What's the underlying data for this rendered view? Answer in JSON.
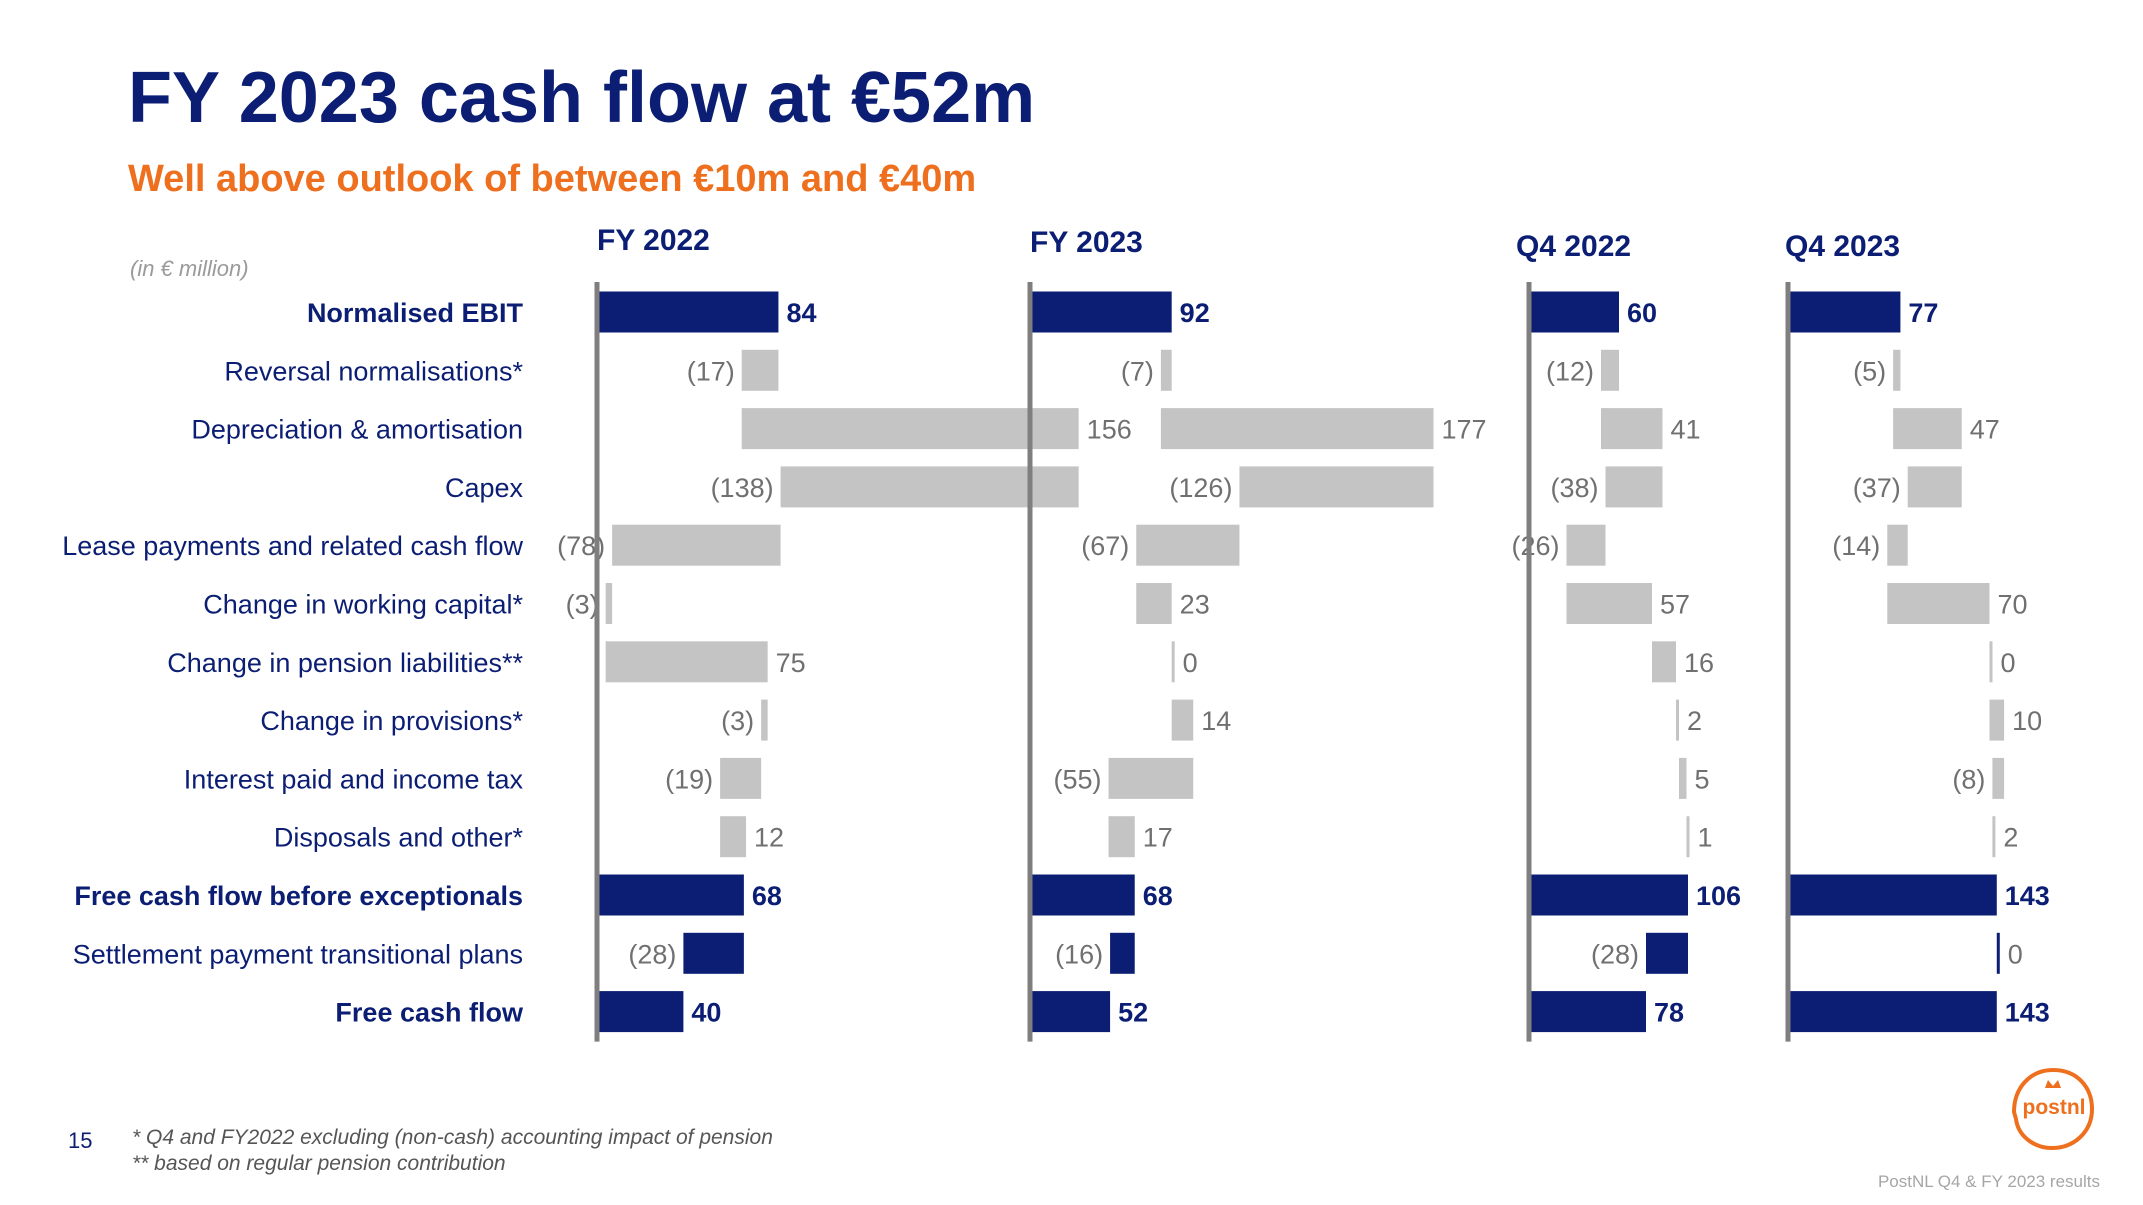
{
  "title": "FY 2023 cash flow at €52m",
  "subtitle": "Well above outlook of between €10m and €40m",
  "unit_note": "(in € million)",
  "page_number": "15",
  "footnotes": [
    "* Q4 and FY2022 excluding (non-cash) accounting impact of pension",
    "** based on regular pension contribution"
  ],
  "footer": "PostNL Q4 & FY 2023 results",
  "logo_text": "postnl",
  "colors": {
    "title": "#0b1e73",
    "subtitle": "#ee6f1d",
    "total_bar": "#0b1e73",
    "step_bar": "#c4c4c4",
    "value_label": "#707070",
    "axis": "#7f7f7f",
    "logo": "#ee6f1d"
  },
  "chart_data": {
    "type": "bar",
    "subtype": "waterfall",
    "unit": "(in € million)",
    "categories": [
      "Normalised EBIT",
      "Reversal normalisations*",
      "Depreciation & amortisation",
      "Capex",
      "Lease payments and related cash flow",
      "Change in working capital*",
      "Change in pension liabilities**",
      "Change in provisions*",
      "Interest paid and income tax",
      "Disposals and other*",
      "Free cash flow before exceptionals",
      "Settlement payment transitional plans",
      "Free cash flow"
    ],
    "bold_categories": [
      0,
      10,
      12
    ],
    "series": [
      {
        "name": "FY 2022",
        "values": [
          84,
          -17,
          156,
          -138,
          -78,
          -3,
          75,
          -3,
          -19,
          12,
          68,
          -28,
          40
        ],
        "labels": [
          "84",
          "(17)",
          "156",
          "(138)",
          "(78)",
          "(3)",
          "75",
          "(3)",
          "(19)",
          "12",
          "68",
          "(28)",
          "40"
        ]
      },
      {
        "name": "FY 2023",
        "values": [
          92,
          -7,
          177,
          -126,
          -67,
          23,
          0,
          14,
          -55,
          17,
          68,
          -16,
          52
        ],
        "labels": [
          "92",
          "(7)",
          "177",
          "(126)",
          "(67)",
          "23",
          "0",
          "14",
          "(55)",
          "17",
          "68",
          "(16)",
          "52"
        ]
      },
      {
        "name": "Q4 2022",
        "values": [
          60,
          -12,
          41,
          -38,
          -26,
          57,
          16,
          2,
          5,
          1,
          106,
          -28,
          78
        ],
        "labels": [
          "60",
          "(12)",
          "41",
          "(38)",
          "(26)",
          "57",
          "16",
          "2",
          "5",
          "1",
          "106",
          "(28)",
          "78"
        ]
      },
      {
        "name": "Q4 2023",
        "values": [
          77,
          -5,
          47,
          -37,
          -14,
          70,
          0,
          10,
          -8,
          2,
          143,
          0,
          143
        ],
        "labels": [
          "77",
          "(5)",
          "47",
          "(37)",
          "(14)",
          "70",
          "0",
          "10",
          "(8)",
          "2",
          "143",
          "0",
          "143"
        ]
      }
    ],
    "total_rows": [
      0,
      10,
      12
    ],
    "exceptional_rows": [
      11
    ]
  }
}
